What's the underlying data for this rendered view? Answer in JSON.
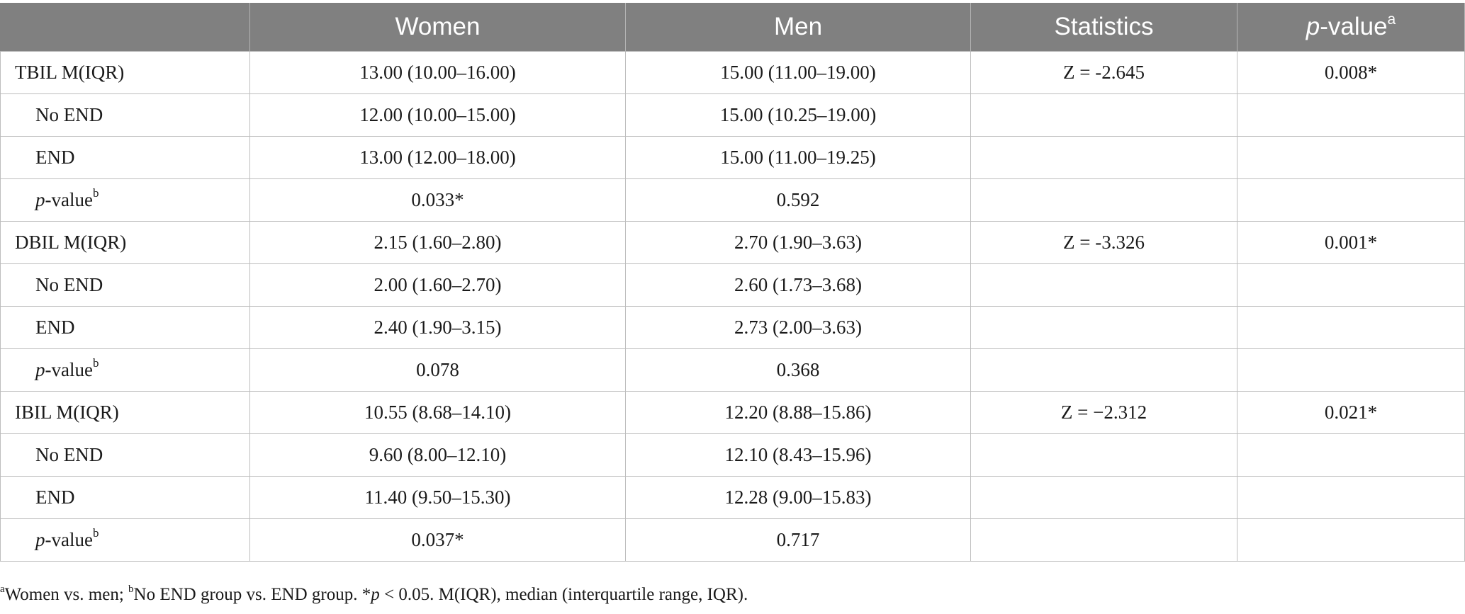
{
  "header": {
    "col_women": "Women",
    "col_men": "Men",
    "col_statistics": "Statistics",
    "col_pvalue_italic": "p",
    "col_pvalue_rest": "-value",
    "col_pvalue_sup": "a"
  },
  "rows": [
    {
      "label": "TBIL M(IQR)",
      "women": "13.00 (10.00–16.00)",
      "men": "15.00 (11.00–19.00)",
      "stat": "Z = -2.645",
      "p": "0.008*"
    },
    {
      "label": "No END",
      "women": "12.00 (10.00–15.00)",
      "men": "15.00 (10.25–19.00)",
      "stat": "",
      "p": ""
    },
    {
      "label": "END",
      "women": "13.00 (12.00–18.00)",
      "men": "15.00 (11.00–19.25)",
      "stat": "",
      "p": ""
    },
    {
      "label_italic": "p",
      "label_rest": "-value",
      "label_sup": "b",
      "women": "0.033*",
      "men": "0.592",
      "stat": "",
      "p": ""
    },
    {
      "label": "DBIL M(IQR)",
      "women": "2.15 (1.60–2.80)",
      "men": "2.70 (1.90–3.63)",
      "stat": "Z = -3.326",
      "p": "0.001*"
    },
    {
      "label": "No END",
      "women": "2.00 (1.60–2.70)",
      "men": "2.60 (1.73–3.68)",
      "stat": "",
      "p": ""
    },
    {
      "label": "END",
      "women": "2.40 (1.90–3.15)",
      "men": "2.73 (2.00–3.63)",
      "stat": "",
      "p": ""
    },
    {
      "label_italic": "p",
      "label_rest": "-value",
      "label_sup": "b",
      "women": "0.078",
      "men": "0.368",
      "stat": "",
      "p": ""
    },
    {
      "label": "IBIL M(IQR)",
      "women": "10.55 (8.68–14.10)",
      "men": "12.20 (8.88–15.86)",
      "stat": "Z = −2.312",
      "p": "0.021*"
    },
    {
      "label": "No END",
      "women": "9.60 (8.00–12.10)",
      "men": "12.10 (8.43–15.96)",
      "stat": "",
      "p": ""
    },
    {
      "label": "END",
      "women": "11.40 (9.50–15.30)",
      "men": "12.28 (9.00–15.83)",
      "stat": "",
      "p": ""
    },
    {
      "label_italic": "p",
      "label_rest": "-value",
      "label_sup": "b",
      "women": "0.037*",
      "men": "0.717",
      "stat": "",
      "p": ""
    }
  ],
  "footnote": {
    "sup_a": "a",
    "text_a": "Women vs. men; ",
    "sup_b": "b",
    "text_b": "No END group vs. END group. *",
    "italic_p": "p",
    "text_c": " < 0.05. M(IQR), median (interquartile range, IQR)."
  }
}
